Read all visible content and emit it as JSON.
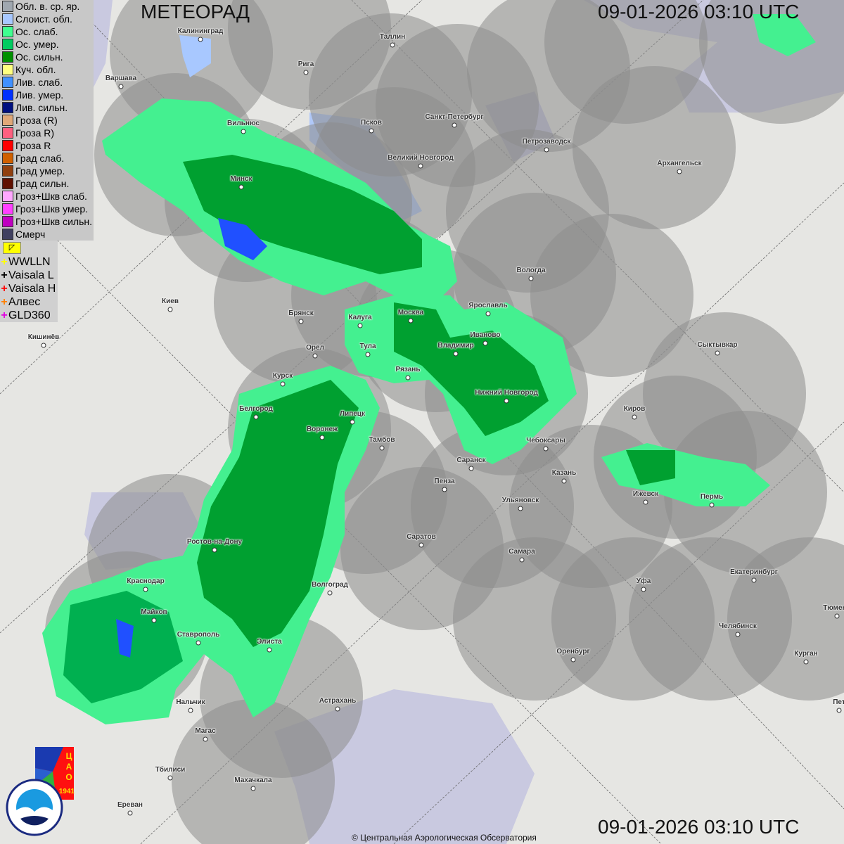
{
  "header": {
    "title": "МЕТЕОРАД",
    "datetime_top": "09-01-2026  03:10 UTC",
    "datetime_bottom": "09-01-2026  03:10 UTC"
  },
  "legend": {
    "items": [
      {
        "label": "Обл. в. ср. яр.",
        "color": "#a0a8b0"
      },
      {
        "label": "Слоист. обл.",
        "color": "#a8c8ff"
      },
      {
        "label": "Ос. слаб.",
        "color": "#40ff90"
      },
      {
        "label": "Ос. умер.",
        "color": "#00cc60"
      },
      {
        "label": "Ос. сильн.",
        "color": "#009000"
      },
      {
        "label": "Куч. обл.",
        "color": "#ffff80"
      },
      {
        "label": "Лив. слаб.",
        "color": "#4090ff"
      },
      {
        "label": "Лив. умер.",
        "color": "#0030ff"
      },
      {
        "label": "Лив. сильн.",
        "color": "#001080"
      },
      {
        "label": "Гроза (R)",
        "color": "#e0a878"
      },
      {
        "label": "Гроза R)",
        "color": "#ff6080"
      },
      {
        "label": "Гроза R",
        "color": "#ff0000"
      },
      {
        "label": "Град слаб.",
        "color": "#d06000"
      },
      {
        "label": "Град умер.",
        "color": "#904010"
      },
      {
        "label": "Град сильн.",
        "color": "#601000"
      },
      {
        "label": "Гроз+Шкв слаб.",
        "color": "#ffa8ff"
      },
      {
        "label": "Гроз+Шкв умер.",
        "color": "#ff40ff"
      },
      {
        "label": "Гроз+Шкв сильн.",
        "color": "#c000c0"
      },
      {
        "label": "Смерч",
        "color": "#404060"
      }
    ],
    "flag_icon": "flag-corner-icon",
    "lightning": [
      {
        "label": "WWLLN",
        "color": "#ffff00"
      },
      {
        "label": "Vaisala L",
        "color": "#000000"
      },
      {
        "label": "Vaisala H",
        "color": "#ff0000"
      },
      {
        "label": "Алвес",
        "color": "#ff8000"
      },
      {
        "label": "GLD360",
        "color": "#e000e0"
      }
    ]
  },
  "cities": [
    "Калининград",
    "Таллин",
    "Рига",
    "Варшава",
    "Санкт-Петербург",
    "Вильнюс",
    "Псков",
    "Петрозаводск",
    "Великий Новгород",
    "Архангельск",
    "Минск",
    "Вологда",
    "Киев",
    "Ярославль",
    "Москва",
    "Брянск",
    "Калуга",
    "Иваново",
    "Кишинёв",
    "Сыктывкар",
    "Орёл",
    "Тула",
    "Владимир",
    "Рязань",
    "Курск",
    "Нижний Новгород",
    "Белгород",
    "Киров",
    "Липецк",
    "Воронеж",
    "Тамбов",
    "Чебоксары",
    "Саранск",
    "Казань",
    "Пенза",
    "Ижевск",
    "Пермь",
    "Ульяновск",
    "Саратов",
    "Ростов-на-Дону",
    "Самара",
    "Екатеринбург",
    "Уфа",
    "Краснодар",
    "Волгоград",
    "Майкоп",
    "Челябинск",
    "Тюмень",
    "Ставрополь",
    "Элиста",
    "Оренбург",
    "Курган",
    "Нальчик",
    "Астрахань",
    "Пет",
    "Магас",
    "Махачкала",
    "Тбилиси",
    "Ереван"
  ],
  "logos": {
    "cao": "ЦАО 1941",
    "roshydromet_ru": "РОСГИДРОМЕТ",
    "roshydromet_en": "ROSHYDROMET"
  },
  "footer": {
    "copyright": "© Центральная Аэрологическая Обсерватория"
  }
}
